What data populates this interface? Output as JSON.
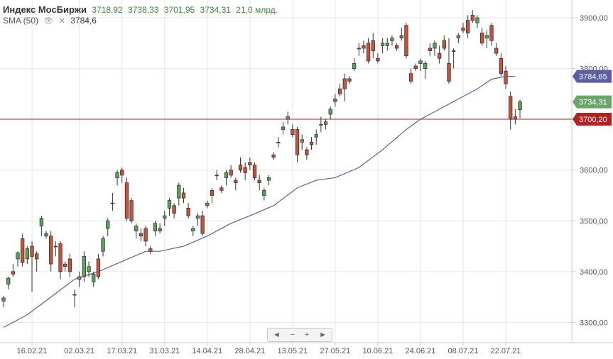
{
  "legend": {
    "title": "Индекс МосБиржи",
    "open": "3718,92",
    "high": "3738,33",
    "low": "3701,95",
    "close": "3734,31",
    "volume": "21,0 млрд.",
    "sma_name": "SMA (50)",
    "sma_value": "3784,6"
  },
  "navigator": {
    "prev": "◄",
    "minus": "−",
    "plus": "+",
    "next": "►"
  },
  "colors": {
    "up": "#5aa55a",
    "down": "#c8523a",
    "sma": "#5b5ea6",
    "hline": "#b22222",
    "grid": "#e6e6e6"
  },
  "chart_data": {
    "type": "candlestick",
    "yticks": [
      3300,
      3400,
      3500,
      3600,
      3700,
      3800,
      3900
    ],
    "ytick_labels": [
      "3300,00",
      "3400,00",
      "3500,00",
      "3600,00",
      "3700,00",
      "3800,00",
      "3900,00"
    ],
    "ylim": [
      3260,
      3935
    ],
    "xticks": [
      {
        "i": 6,
        "label": "16.02.21"
      },
      {
        "i": 16,
        "label": "02.03.21"
      },
      {
        "i": 25,
        "label": "17.03.21"
      },
      {
        "i": 34,
        "label": "31.03.21"
      },
      {
        "i": 43,
        "label": "14.04.21"
      },
      {
        "i": 52,
        "label": "28.04.21"
      },
      {
        "i": 61,
        "label": "13.05.21"
      },
      {
        "i": 70,
        "label": "27.05.21"
      },
      {
        "i": 79,
        "label": "10.06.21"
      },
      {
        "i": 88,
        "label": "24.06.21"
      },
      {
        "i": 97,
        "label": "08.07.21"
      },
      {
        "i": 106,
        "label": "22.07.21"
      }
    ],
    "candles": [
      [
        3342,
        3352,
        3330,
        3348
      ],
      [
        3375,
        3390,
        3365,
        3387
      ],
      [
        3400,
        3415,
        3390,
        3395
      ],
      [
        3425,
        3440,
        3410,
        3437
      ],
      [
        3465,
        3475,
        3410,
        3418
      ],
      [
        3425,
        3450,
        3415,
        3445
      ],
      [
        3450,
        3460,
        3360,
        3430
      ],
      [
        3435,
        3440,
        3400,
        3425
      ],
      [
        3490,
        3510,
        3470,
        3505
      ],
      [
        3470,
        3480,
        3465,
        3475
      ],
      [
        3470,
        3480,
        3400,
        3415
      ],
      [
        3450,
        3460,
        3430,
        3450
      ],
      [
        3455,
        3460,
        3385,
        3400
      ],
      [
        3415,
        3420,
        3400,
        3410
      ],
      [
        3425,
        3435,
        3390,
        3400
      ],
      [
        3355,
        3365,
        3330,
        3355
      ],
      [
        3385,
        3400,
        3370,
        3390
      ],
      [
        3390,
        3440,
        3380,
        3430
      ],
      [
        3400,
        3420,
        3390,
        3410
      ],
      [
        3380,
        3400,
        3370,
        3395
      ],
      [
        3425,
        3435,
        3385,
        3390
      ],
      [
        3440,
        3470,
        3430,
        3465
      ],
      [
        3485,
        3505,
        3470,
        3500
      ],
      [
        3535,
        3555,
        3520,
        3535
      ],
      [
        3585,
        3600,
        3570,
        3595
      ],
      [
        3600,
        3605,
        3575,
        3590
      ],
      [
        3575,
        3585,
        3500,
        3505
      ],
      [
        3540,
        3545,
        3495,
        3500
      ],
      [
        3480,
        3495,
        3465,
        3490
      ],
      [
        3475,
        3485,
        3460,
        3470
      ],
      [
        3485,
        3490,
        3450,
        3460
      ],
      [
        3445,
        3450,
        3435,
        3440
      ],
      [
        3480,
        3500,
        3470,
        3495
      ],
      [
        3485,
        3495,
        3475,
        3480
      ],
      [
        3505,
        3520,
        3490,
        3510
      ],
      [
        3525,
        3545,
        3510,
        3540
      ],
      [
        3530,
        3535,
        3505,
        3515
      ],
      [
        3545,
        3575,
        3530,
        3570
      ],
      [
        3555,
        3565,
        3535,
        3545
      ],
      [
        3525,
        3535,
        3505,
        3510
      ],
      [
        3480,
        3490,
        3470,
        3485
      ],
      [
        3505,
        3515,
        3490,
        3510
      ],
      [
        3510,
        3520,
        3470,
        3475
      ],
      [
        3530,
        3540,
        3525,
        3535
      ],
      [
        3560,
        3565,
        3535,
        3550
      ],
      [
        3590,
        3600,
        3580,
        3590
      ],
      [
        3565,
        3570,
        3555,
        3560
      ],
      [
        3585,
        3600,
        3570,
        3595
      ],
      [
        3600,
        3610,
        3585,
        3590
      ],
      [
        3580,
        3585,
        3560,
        3575
      ],
      [
        3610,
        3625,
        3595,
        3600
      ],
      [
        3605,
        3615,
        3580,
        3595
      ],
      [
        3615,
        3625,
        3600,
        3610
      ],
      [
        3610,
        3615,
        3580,
        3585
      ],
      [
        3580,
        3590,
        3560,
        3575
      ],
      [
        3550,
        3565,
        3540,
        3560
      ],
      [
        3580,
        3590,
        3570,
        3585
      ],
      [
        3630,
        3635,
        3620,
        3625
      ],
      [
        3655,
        3665,
        3645,
        3655
      ],
      [
        3680,
        3695,
        3670,
        3685
      ],
      [
        3700,
        3715,
        3690,
        3705
      ],
      [
        3680,
        3690,
        3665,
        3670
      ],
      [
        3680,
        3685,
        3615,
        3630
      ],
      [
        3655,
        3670,
        3640,
        3660
      ],
      [
        3640,
        3645,
        3620,
        3630
      ],
      [
        3655,
        3665,
        3640,
        3650
      ],
      [
        3665,
        3680,
        3650,
        3670
      ],
      [
        3690,
        3705,
        3675,
        3690
      ],
      [
        3690,
        3700,
        3680,
        3695
      ],
      [
        3710,
        3725,
        3700,
        3720
      ],
      [
        3740,
        3750,
        3725,
        3735
      ],
      [
        3760,
        3770,
        3745,
        3750
      ],
      [
        3780,
        3790,
        3735,
        3760
      ],
      [
        3780,
        3785,
        3770,
        3775
      ],
      [
        3800,
        3820,
        3795,
        3810
      ],
      [
        3840,
        3850,
        3825,
        3840
      ],
      [
        3845,
        3855,
        3830,
        3840
      ],
      [
        3850,
        3860,
        3810,
        3815
      ],
      [
        3855,
        3870,
        3820,
        3835
      ],
      [
        3820,
        3830,
        3810,
        3815
      ],
      [
        3845,
        3860,
        3830,
        3850
      ],
      [
        3845,
        3860,
        3835,
        3850
      ],
      [
        3855,
        3865,
        3845,
        3860
      ],
      [
        3845,
        3850,
        3835,
        3840
      ],
      [
        3865,
        3880,
        3855,
        3860
      ],
      [
        3885,
        3890,
        3820,
        3825
      ],
      [
        3790,
        3800,
        3770,
        3775
      ],
      [
        3805,
        3810,
        3795,
        3800
      ],
      [
        3810,
        3820,
        3795,
        3815
      ],
      [
        3800,
        3815,
        3780,
        3810
      ],
      [
        3840,
        3850,
        3825,
        3835
      ],
      [
        3840,
        3855,
        3825,
        3850
      ],
      [
        3830,
        3845,
        3810,
        3820
      ],
      [
        3855,
        3865,
        3835,
        3840
      ],
      [
        3810,
        3860,
        3770,
        3775
      ],
      [
        3835,
        3840,
        3800,
        3835
      ],
      [
        3860,
        3870,
        3850,
        3865
      ],
      [
        3880,
        3890,
        3870,
        3875
      ],
      [
        3895,
        3905,
        3860,
        3870
      ],
      [
        3905,
        3915,
        3890,
        3895
      ],
      [
        3890,
        3905,
        3880,
        3900
      ],
      [
        3870,
        3880,
        3845,
        3850
      ],
      [
        3860,
        3875,
        3840,
        3865
      ],
      [
        3885,
        3890,
        3845,
        3855
      ],
      [
        3840,
        3850,
        3825,
        3830
      ],
      [
        3820,
        3830,
        3785,
        3790
      ],
      [
        3795,
        3805,
        3760,
        3770
      ],
      [
        3745,
        3755,
        3680,
        3700
      ],
      [
        3705,
        3720,
        3690,
        3700
      ],
      [
        3718.92,
        3738.33,
        3701.95,
        3734.31
      ]
    ],
    "sma": [
      [
        0,
        3290
      ],
      [
        5,
        3315
      ],
      [
        10,
        3350
      ],
      [
        15,
        3385
      ],
      [
        20,
        3400
      ],
      [
        25,
        3420
      ],
      [
        30,
        3440
      ],
      [
        33,
        3440
      ],
      [
        38,
        3450
      ],
      [
        43,
        3470
      ],
      [
        48,
        3495
      ],
      [
        52,
        3510
      ],
      [
        57,
        3530
      ],
      [
        62,
        3565
      ],
      [
        66,
        3580
      ],
      [
        70,
        3585
      ],
      [
        75,
        3605
      ],
      [
        80,
        3640
      ],
      [
        85,
        3680
      ],
      [
        88,
        3700
      ],
      [
        92,
        3720
      ],
      [
        96,
        3740
      ],
      [
        100,
        3760
      ],
      [
        103,
        3779
      ],
      [
        106,
        3784.6
      ],
      [
        108,
        3784.6
      ]
    ],
    "current_price": "3734,31",
    "current_value": 3734.31,
    "sma_label": "3784,65",
    "sma_last": 3784.65,
    "hline": {
      "value": 3700.2,
      "label": "3700,20"
    }
  }
}
